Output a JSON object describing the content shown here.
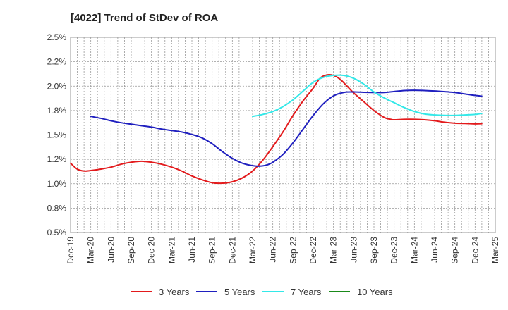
{
  "chart_data": {
    "type": "line",
    "title": "[4022]  Trend of StDev of ROA",
    "xlabel": "",
    "ylabel": "",
    "ylim": [
      0.5,
      2.5
    ],
    "y_ticks": [
      "0.5%",
      "0.8%",
      "1.0%",
      "1.2%",
      "1.5%",
      "1.8%",
      "2.0%",
      "2.2%",
      "2.5%"
    ],
    "x_ticks": [
      "Dec-19",
      "Mar-20",
      "Jun-20",
      "Sep-20",
      "Dec-20",
      "Mar-21",
      "Jun-21",
      "Sep-21",
      "Dec-21",
      "Mar-22",
      "Jun-22",
      "Sep-22",
      "Dec-22",
      "Mar-23",
      "Jun-23",
      "Sep-23",
      "Dec-23",
      "Mar-24",
      "Jun-24",
      "Sep-24",
      "Dec-24",
      "Mar-25"
    ],
    "grid": true,
    "legend_position": "bottom",
    "series": [
      {
        "name": "3 Years",
        "color": "#e31a1c",
        "points": [
          [
            0,
            1.21
          ],
          [
            0.33,
            1.15
          ],
          [
            0.67,
            1.13
          ],
          [
            1,
            1.135
          ],
          [
            1.5,
            1.15
          ],
          [
            2,
            1.17
          ],
          [
            2.5,
            1.2
          ],
          [
            3,
            1.22
          ],
          [
            3.5,
            1.23
          ],
          [
            4,
            1.22
          ],
          [
            4.5,
            1.2
          ],
          [
            5,
            1.17
          ],
          [
            5.5,
            1.13
          ],
          [
            6,
            1.08
          ],
          [
            6.5,
            1.04
          ],
          [
            7,
            1.01
          ],
          [
            7.5,
            1.005
          ],
          [
            8,
            1.02
          ],
          [
            8.5,
            1.06
          ],
          [
            9,
            1.13
          ],
          [
            9.5,
            1.24
          ],
          [
            10,
            1.38
          ],
          [
            10.5,
            1.53
          ],
          [
            11,
            1.7
          ],
          [
            11.5,
            1.85
          ],
          [
            12,
            1.98
          ],
          [
            12.33,
            2.08
          ],
          [
            12.67,
            2.115
          ],
          [
            13,
            2.11
          ],
          [
            13.33,
            2.07
          ],
          [
            13.67,
            2.0
          ],
          [
            14,
            1.93
          ],
          [
            14.5,
            1.84
          ],
          [
            15,
            1.75
          ],
          [
            15.5,
            1.68
          ],
          [
            15.83,
            1.66
          ],
          [
            16,
            1.655
          ],
          [
            16.5,
            1.66
          ],
          [
            17,
            1.66
          ],
          [
            17.5,
            1.655
          ],
          [
            18,
            1.645
          ],
          [
            18.5,
            1.63
          ],
          [
            19,
            1.62
          ],
          [
            19.5,
            1.617
          ],
          [
            20,
            1.613
          ],
          [
            20.33,
            1.615
          ]
        ]
      },
      {
        "name": "5 Years",
        "color": "#1f1fbf",
        "points": [
          [
            1,
            1.69
          ],
          [
            1.5,
            1.67
          ],
          [
            2,
            1.645
          ],
          [
            2.5,
            1.625
          ],
          [
            3,
            1.61
          ],
          [
            3.5,
            1.595
          ],
          [
            4,
            1.58
          ],
          [
            4.5,
            1.56
          ],
          [
            5,
            1.545
          ],
          [
            5.5,
            1.53
          ],
          [
            6,
            1.505
          ],
          [
            6.5,
            1.47
          ],
          [
            7,
            1.41
          ],
          [
            7.5,
            1.33
          ],
          [
            8,
            1.26
          ],
          [
            8.5,
            1.21
          ],
          [
            9,
            1.185
          ],
          [
            9.33,
            1.18
          ],
          [
            9.67,
            1.19
          ],
          [
            10,
            1.22
          ],
          [
            10.5,
            1.3
          ],
          [
            11,
            1.42
          ],
          [
            11.5,
            1.56
          ],
          [
            12,
            1.7
          ],
          [
            12.5,
            1.82
          ],
          [
            13,
            1.9
          ],
          [
            13.5,
            1.935
          ],
          [
            14,
            1.94
          ],
          [
            14.5,
            1.937
          ],
          [
            15,
            1.935
          ],
          [
            15.5,
            1.935
          ],
          [
            16,
            1.945
          ],
          [
            16.5,
            1.955
          ],
          [
            17,
            1.958
          ],
          [
            17.5,
            1.955
          ],
          [
            18,
            1.95
          ],
          [
            18.5,
            1.943
          ],
          [
            19,
            1.935
          ],
          [
            19.5,
            1.92
          ],
          [
            20,
            1.905
          ],
          [
            20.33,
            1.898
          ]
        ]
      },
      {
        "name": "7 Years",
        "color": "#33e8e8",
        "points": [
          [
            9,
            1.69
          ],
          [
            9.5,
            1.71
          ],
          [
            10,
            1.74
          ],
          [
            10.5,
            1.79
          ],
          [
            11,
            1.86
          ],
          [
            11.5,
            1.95
          ],
          [
            12,
            2.04
          ],
          [
            12.5,
            2.09
          ],
          [
            13,
            2.11
          ],
          [
            13.5,
            2.11
          ],
          [
            14,
            2.08
          ],
          [
            14.5,
            2.02
          ],
          [
            15,
            1.94
          ],
          [
            15.5,
            1.88
          ],
          [
            16,
            1.83
          ],
          [
            16.5,
            1.78
          ],
          [
            17,
            1.74
          ],
          [
            17.5,
            1.715
          ],
          [
            18,
            1.705
          ],
          [
            18.5,
            1.7
          ],
          [
            19,
            1.7
          ],
          [
            19.5,
            1.705
          ],
          [
            20,
            1.71
          ],
          [
            20.33,
            1.72
          ]
        ]
      },
      {
        "name": "10 Years",
        "color": "#1a8a1a",
        "points": []
      }
    ]
  }
}
